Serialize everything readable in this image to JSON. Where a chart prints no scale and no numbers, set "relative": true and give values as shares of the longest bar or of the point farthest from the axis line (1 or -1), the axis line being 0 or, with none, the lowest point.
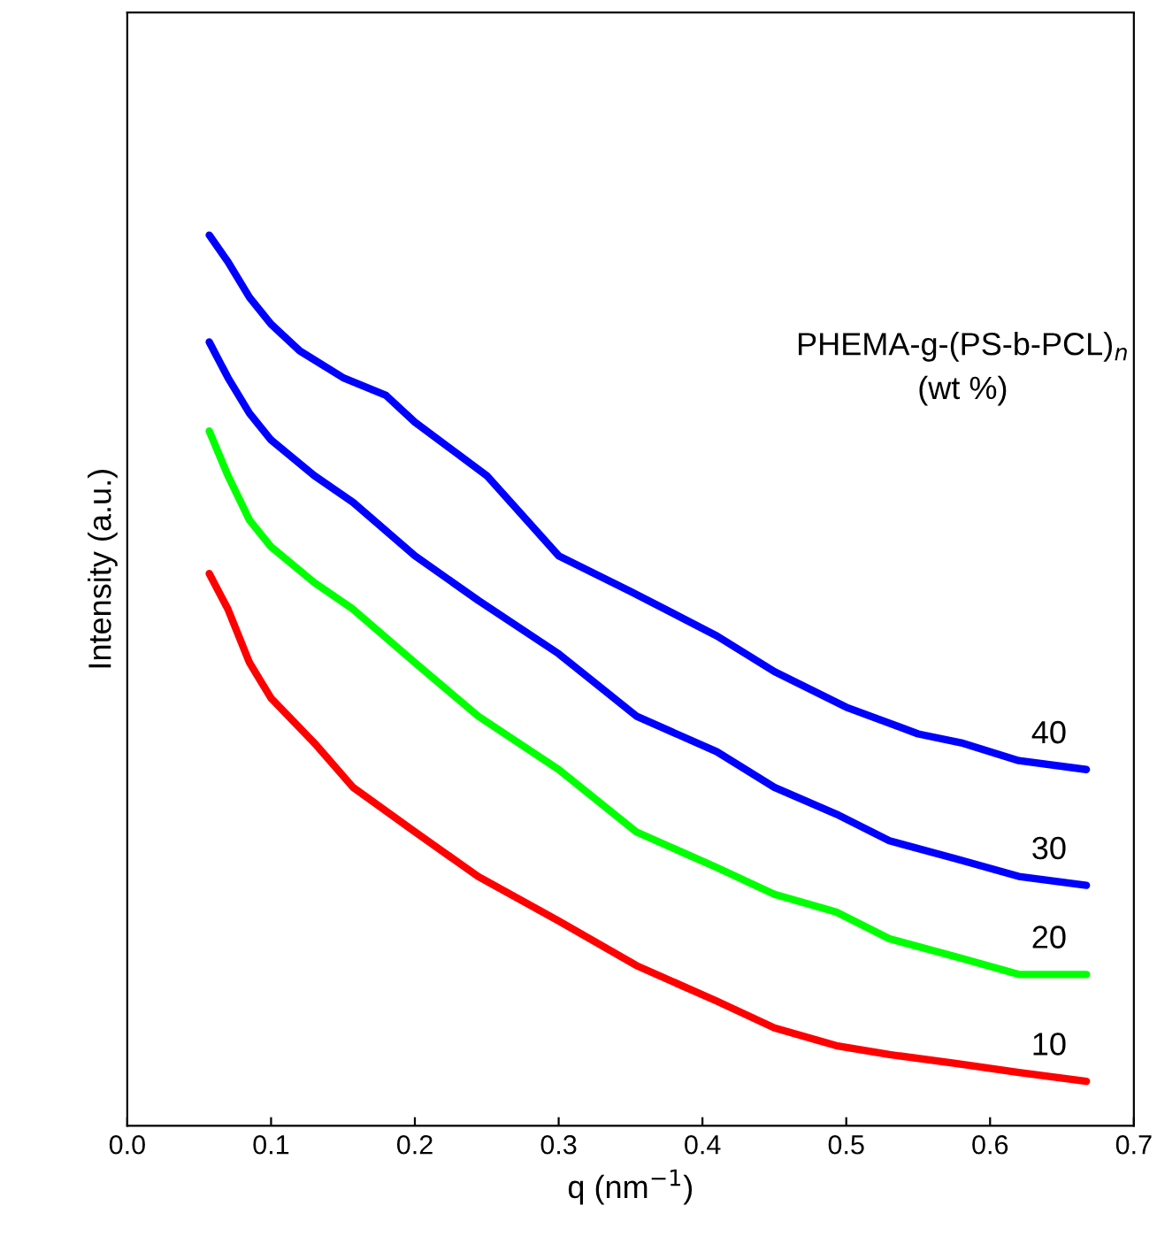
{
  "chart_data": {
    "type": "line",
    "relative": true,
    "xlabel": "q (nm$^{−1}$)",
    "ylabel": "Intensity (a.u.)",
    "legend_title": "PHEMA-g-(PS-b-PCL)$_{n}$\n(wt %)",
    "legend": false,
    "grid": false,
    "marker": "none",
    "line_style": "solid",
    "xlim": [
      0,
      0.7
    ],
    "xticks": [
      {
        "value": 0,
        "label": "0.0"
      },
      {
        "value": 0.1,
        "label": "0.1"
      },
      {
        "value": 0.2,
        "label": "0.2"
      },
      {
        "value": 0.3,
        "label": "0.3"
      },
      {
        "value": 0.4,
        "label": "0.4"
      },
      {
        "value": 0.5,
        "label": "0.5"
      },
      {
        "value": 0.6,
        "label": "0.6"
      },
      {
        "value": 0.7,
        "label": "0.7"
      }
    ],
    "series": [
      {
        "name": "40",
        "color": "#0000ff",
        "x": [
          0.057,
          0.07,
          0.085,
          0.1,
          0.12,
          0.15,
          0.18,
          0.2,
          0.25,
          0.3,
          0.35,
          0.41,
          0.45,
          0.5,
          0.55,
          0.58,
          0.62,
          0.667
        ],
        "values": [
          1.0,
          0.97,
          0.93,
          0.9,
          0.87,
          0.84,
          0.82,
          0.79,
          0.73,
          0.64,
          0.6,
          0.55,
          0.51,
          0.47,
          0.44,
          0.43,
          0.41,
          0.4
        ]
      },
      {
        "name": "30",
        "color": "#0000ff",
        "x": [
          0.057,
          0.07,
          0.085,
          0.1,
          0.13,
          0.157,
          0.2,
          0.244,
          0.3,
          0.354,
          0.41,
          0.45,
          0.493,
          0.53,
          0.576,
          0.62,
          0.667
        ],
        "values": [
          0.88,
          0.84,
          0.8,
          0.77,
          0.73,
          0.7,
          0.64,
          0.59,
          0.53,
          0.46,
          0.42,
          0.38,
          0.35,
          0.32,
          0.3,
          0.28,
          0.27
        ]
      },
      {
        "name": "20",
        "color": "#00ff00",
        "x": [
          0.057,
          0.07,
          0.085,
          0.1,
          0.13,
          0.157,
          0.2,
          0.244,
          0.3,
          0.354,
          0.41,
          0.45,
          0.493,
          0.53,
          0.576,
          0.62,
          0.667
        ],
        "values": [
          0.78,
          0.73,
          0.68,
          0.65,
          0.61,
          0.58,
          0.52,
          0.46,
          0.4,
          0.33,
          0.29,
          0.26,
          0.24,
          0.21,
          0.19,
          0.17,
          0.17
        ]
      },
      {
        "name": "10",
        "color": "#ff0000",
        "x": [
          0.057,
          0.07,
          0.085,
          0.1,
          0.13,
          0.157,
          0.2,
          0.244,
          0.3,
          0.354,
          0.41,
          0.45,
          0.493,
          0.53,
          0.576,
          0.62,
          0.667
        ],
        "values": [
          0.62,
          0.58,
          0.52,
          0.48,
          0.43,
          0.38,
          0.33,
          0.28,
          0.23,
          0.18,
          0.14,
          0.11,
          0.09,
          0.08,
          0.07,
          0.06,
          0.05
        ]
      }
    ]
  }
}
